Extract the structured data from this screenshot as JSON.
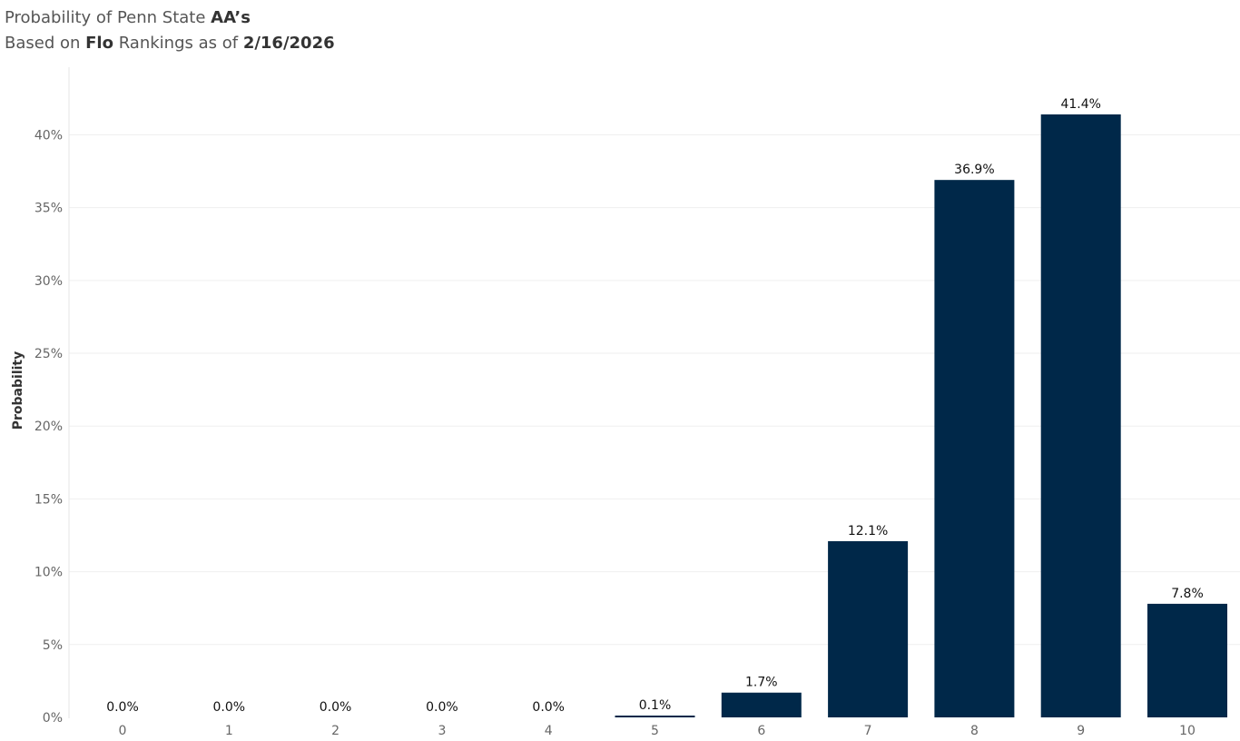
{
  "header": {
    "line1_prefix": "Probability of Penn State ",
    "line1_bold": "AA’s",
    "line2_prefix": "Based on ",
    "line2_bold_source": "Flo",
    "line2_middle": " Rankings as of ",
    "line2_bold_date": "2/16/2026"
  },
  "chart_data": {
    "type": "bar",
    "title": "Probability of Penn State AA’s",
    "subtitle": "Based on Flo Rankings as of 2/16/2026",
    "xlabel": "",
    "ylabel": "Probability",
    "categories": [
      "0",
      "1",
      "2",
      "3",
      "4",
      "5",
      "6",
      "7",
      "8",
      "9",
      "10"
    ],
    "values": [
      0.0,
      0.0,
      0.0,
      0.0,
      0.0,
      0.1,
      1.7,
      12.1,
      36.9,
      41.4,
      7.8
    ],
    "data_labels": [
      "0.0%",
      "0.0%",
      "0.0%",
      "0.0%",
      "0.0%",
      "0.1%",
      "1.7%",
      "12.1%",
      "36.9%",
      "41.4%",
      "7.8%"
    ],
    "yticks": [
      0,
      5,
      10,
      15,
      20,
      25,
      30,
      35,
      40
    ],
    "ytick_labels": [
      "0%",
      "5%",
      "10%",
      "15%",
      "20%",
      "25%",
      "30%",
      "35%",
      "40%"
    ],
    "ylim": [
      0,
      41.4
    ],
    "grid": true,
    "bar_color": "#002849"
  }
}
